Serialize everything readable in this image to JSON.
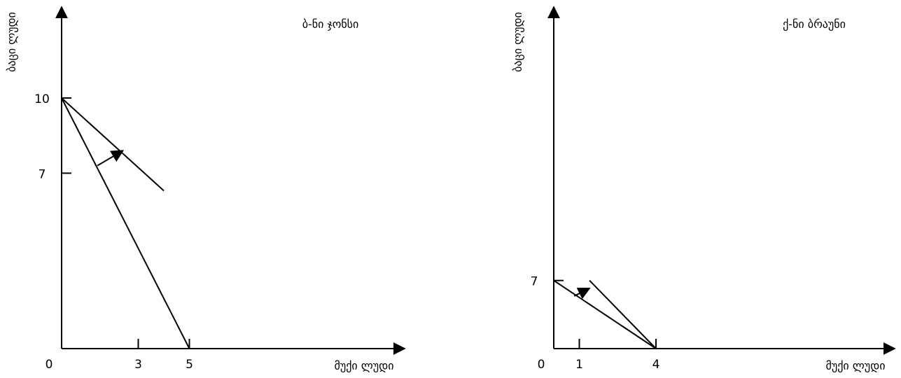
{
  "chart_data": [
    {
      "type": "line",
      "title": "ბ-ნი ჯონსი",
      "xlabel": "მუქი ლუდი",
      "ylabel": "ბაცი ლუდი",
      "origin_label": "0",
      "x_ticks": [
        "3",
        "5"
      ],
      "x_tick_values": [
        3,
        5
      ],
      "y_ticks": [
        "10",
        "7"
      ],
      "y_tick_values": [
        10,
        7
      ],
      "series": [
        {
          "x": [
            0,
            5
          ],
          "y": [
            10,
            0
          ]
        },
        {
          "x": [
            0,
            4
          ],
          "y": [
            10,
            6.3
          ]
        }
      ],
      "arrow": {
        "from": [
          1.4,
          7.3
        ],
        "to": [
          2.4,
          7.9
        ]
      }
    },
    {
      "type": "line",
      "title": "ქ-ნი ბრაუნი",
      "xlabel": "მუქი ლუდი",
      "ylabel": "ბაცი ლუდი",
      "origin_label": "0",
      "x_ticks": [
        "1",
        "4"
      ],
      "x_tick_values": [
        1,
        4
      ],
      "y_ticks": [
        "7"
      ],
      "y_tick_values": [
        7
      ],
      "series": [
        {
          "x": [
            0,
            4
          ],
          "y": [
            7,
            0
          ]
        },
        {
          "x": [
            1.4,
            4
          ],
          "y": [
            7,
            0
          ]
        }
      ],
      "arrow": {
        "from": [
          0.8,
          5.4
        ],
        "to": [
          1.4,
          6.2
        ]
      }
    }
  ]
}
